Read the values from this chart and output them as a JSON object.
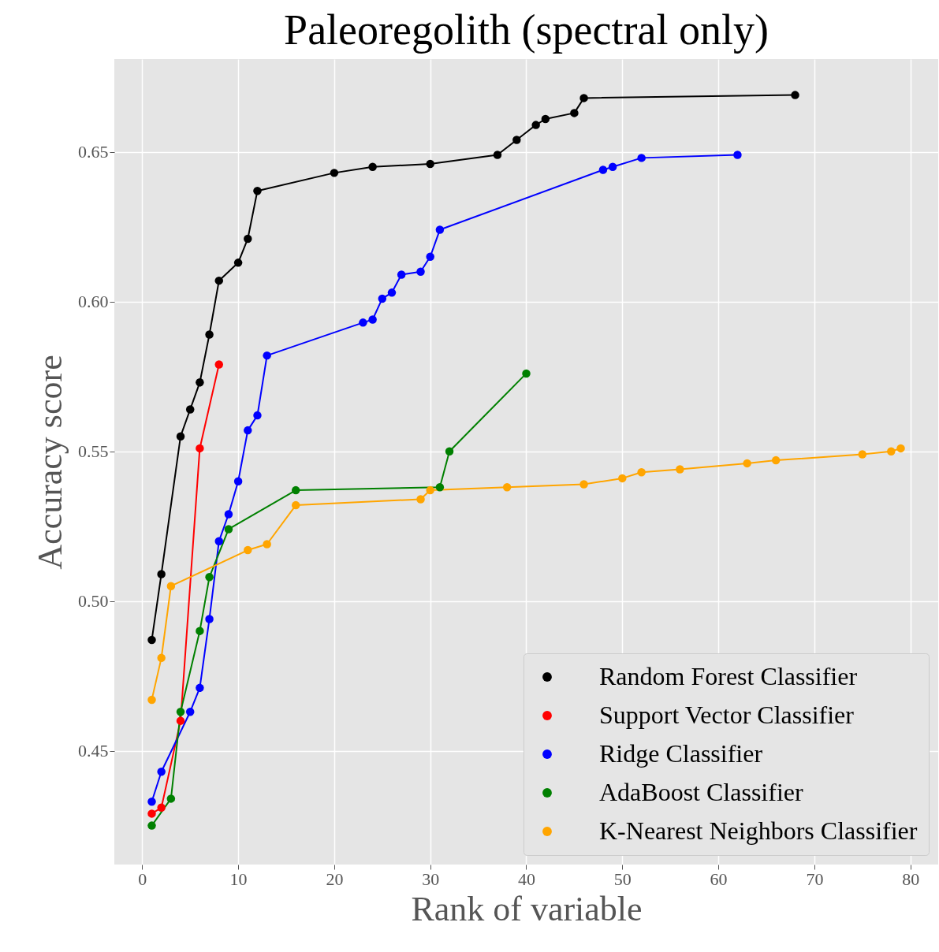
{
  "chart_data": {
    "type": "line",
    "title": "Paleoregolith (spectral only)",
    "xlabel": "Rank of variable",
    "ylabel": "Accuracy score",
    "xlim": [
      -2.9,
      82.9
    ],
    "ylim": [
      0.412,
      0.681
    ],
    "xticks": [
      0,
      10,
      20,
      30,
      40,
      50,
      60,
      70,
      80
    ],
    "yticks": [
      0.45,
      {
        "value": 0.5,
        "label": "0.50"
      },
      0.55,
      {
        "value": 0.6,
        "label": "0.60"
      },
      0.65
    ],
    "grid": true,
    "legend": "bottom right",
    "marker": "circle",
    "line_style": "solid",
    "series": [
      {
        "name": "Random Forest Classifier",
        "color": "#000000",
        "x": [
          1,
          2,
          4,
          5,
          6,
          7,
          8,
          10,
          11,
          12,
          20,
          24,
          30,
          37,
          39,
          41,
          42,
          45,
          46,
          68
        ],
        "values": [
          0.487,
          0.509,
          0.555,
          0.564,
          0.573,
          0.589,
          0.607,
          0.613,
          0.621,
          0.637,
          0.643,
          0.645,
          0.646,
          0.649,
          0.654,
          0.659,
          0.661,
          0.663,
          0.668,
          0.669
        ]
      },
      {
        "name": "Support Vector Classifier",
        "color": "#ff0000",
        "x": [
          1,
          2,
          4,
          6,
          8
        ],
        "values": [
          0.429,
          0.431,
          0.46,
          0.551,
          0.579
        ]
      },
      {
        "name": "Ridge Classifier",
        "color": "#0000ff",
        "x": [
          1,
          2,
          5,
          6,
          7,
          8,
          9,
          10,
          11,
          12,
          13,
          23,
          24,
          25,
          26,
          27,
          29,
          30,
          31,
          48,
          49,
          52,
          62
        ],
        "values": [
          0.433,
          0.443,
          0.463,
          0.471,
          0.494,
          0.52,
          0.529,
          0.54,
          0.557,
          0.562,
          0.582,
          0.593,
          0.594,
          0.601,
          0.603,
          0.609,
          0.61,
          0.615,
          0.624,
          0.644,
          0.645,
          0.648,
          0.649
        ]
      },
      {
        "name": "AdaBoost Classifier",
        "color": "#008000",
        "x": [
          1,
          3,
          4,
          6,
          7,
          9,
          16,
          31,
          32,
          40
        ],
        "values": [
          0.425,
          0.434,
          0.463,
          0.49,
          0.508,
          0.524,
          0.537,
          0.538,
          0.55,
          0.576
        ]
      },
      {
        "name": "K-Nearest Neighbors Classifier",
        "color": "#ffa500",
        "x": [
          1,
          2,
          3,
          11,
          13,
          16,
          29,
          30,
          38,
          46,
          50,
          52,
          56,
          63,
          66,
          75,
          78,
          79
        ],
        "values": [
          0.467,
          0.481,
          0.505,
          0.517,
          0.519,
          0.532,
          0.534,
          0.537,
          0.538,
          0.539,
          0.541,
          0.543,
          0.544,
          0.546,
          0.547,
          0.549,
          0.55,
          0.551
        ]
      }
    ]
  }
}
